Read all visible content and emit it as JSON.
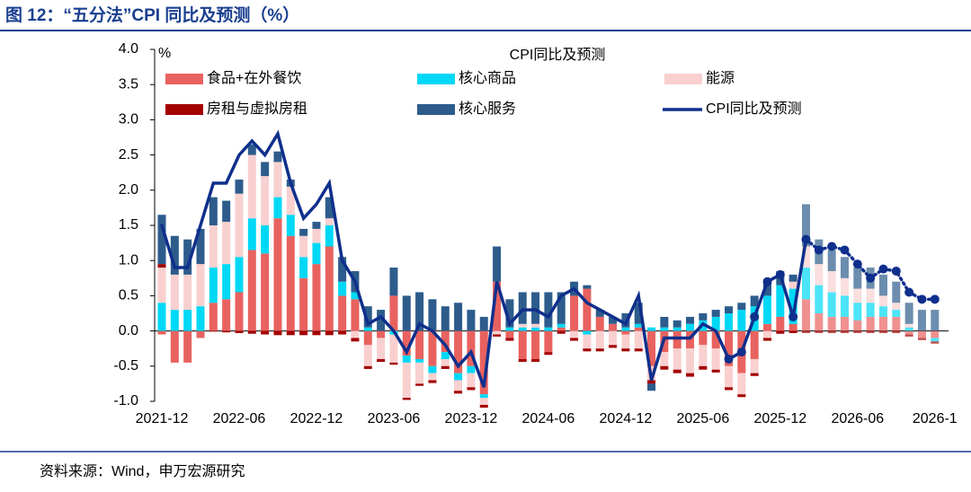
{
  "chart_data": {
    "type": "stacked-bar-line",
    "title": "图 12：“五分法”CPI 同比及预测（%）",
    "y_unit": "%",
    "legend_title": "CPI同比及预测",
    "source": "资料来源：Wind，申万宏源研究",
    "categories": [
      "2021-12",
      null,
      null,
      null,
      null,
      null,
      "2022-06",
      null,
      null,
      null,
      null,
      null,
      "2022-12",
      null,
      null,
      null,
      null,
      null,
      "2023-06",
      null,
      null,
      null,
      null,
      null,
      "2023-12",
      null,
      null,
      null,
      null,
      null,
      "2024-06",
      null,
      null,
      null,
      null,
      null,
      "2024-12",
      null,
      null,
      null,
      null,
      null,
      "2025-06",
      null,
      null,
      null,
      null,
      null,
      "2025-12",
      null,
      null,
      null,
      null,
      null,
      "2026-06",
      null,
      null,
      null,
      null,
      null,
      "2026-1"
    ],
    "ylim": [
      -1,
      4
    ],
    "yticks": [
      {
        "value": -1,
        "label": "-1.0"
      },
      {
        "value": -0.5,
        "label": "-0.5"
      },
      {
        "value": 0,
        "label": "0.0"
      },
      {
        "value": 0.5,
        "label": "0.5"
      },
      {
        "value": 1,
        "label": "1.0"
      },
      {
        "value": 1.5,
        "label": "1.5"
      },
      {
        "value": 2,
        "label": "2.0"
      },
      {
        "value": 2.5,
        "label": "2.5"
      },
      {
        "value": 3,
        "label": "3.0"
      },
      {
        "value": 3.5,
        "label": "3.5"
      },
      {
        "value": 4,
        "label": "4.0"
      }
    ],
    "series": [
      {
        "name": "食品+在外餐饮",
        "color": "#e8625f",
        "values": [
          -0.05,
          -0.45,
          -0.45,
          -0.1,
          0.4,
          0.45,
          0.55,
          1.15,
          1.1,
          1.6,
          1.35,
          0.75,
          0.95,
          1.2,
          0.5,
          0.45,
          -0.2,
          -0.1,
          0.5,
          -0.35,
          -0.4,
          -0.5,
          -0.3,
          -0.6,
          -0.5,
          -0.9,
          0.7,
          -0.1,
          -0.4,
          -0.4,
          -0.3,
          0.05,
          0.5,
          0.6,
          0.2,
          0.1,
          -0.05,
          0.05,
          -0.5,
          -0.3,
          -0.25,
          -0.25,
          -0.2,
          -0.25,
          -0.5,
          -0.6,
          -0.4,
          0.1,
          0.2,
          0.1,
          0.45,
          0.25,
          0.2,
          0.2,
          0.15,
          0.2,
          0.2,
          0.2,
          -0.05,
          -0.1,
          -0.1
        ]
      },
      {
        "name": "核心商品",
        "color": "#00d8f5",
        "values": [
          0.4,
          0.3,
          0.3,
          0.35,
          0.5,
          0.5,
          0.5,
          0.45,
          0.4,
          0.3,
          0.3,
          0.3,
          0.3,
          0.3,
          0.2,
          0.1,
          0.05,
          0,
          -0.05,
          -0.1,
          -0.05,
          -0.1,
          -0.1,
          -0.1,
          -0.1,
          -0.05,
          0,
          0.05,
          0.05,
          0.05,
          0.05,
          0.05,
          0,
          -0.05,
          0,
          0,
          0.05,
          0.05,
          0.05,
          0.05,
          0.05,
          0.1,
          0.15,
          0.2,
          0.25,
          0.3,
          0.35,
          0.4,
          0.45,
          0.5,
          0.45,
          0.4,
          0.35,
          0.3,
          0.25,
          0.2,
          0.15,
          0.1,
          0.05,
          0,
          -0.05
        ]
      },
      {
        "name": "能源",
        "color": "#f9d0d0",
        "values": [
          0.5,
          0.5,
          0.5,
          0.6,
          0.6,
          0.6,
          0.9,
          0.9,
          0.7,
          0.5,
          0.4,
          0.3,
          0.2,
          0.1,
          0,
          -0.1,
          -0.3,
          -0.3,
          -0.4,
          -0.5,
          -0.3,
          -0.1,
          -0.1,
          -0.15,
          -0.2,
          -0.1,
          -0.05,
          0,
          0.05,
          0.05,
          0,
          0,
          -0.1,
          -0.2,
          -0.25,
          -0.2,
          -0.2,
          -0.25,
          -0.2,
          -0.2,
          -0.3,
          -0.35,
          -0.3,
          -0.3,
          -0.3,
          -0.3,
          -0.2,
          -0.1,
          0,
          0.1,
          0.3,
          0.3,
          0.3,
          0.25,
          0.2,
          0.2,
          0.15,
          0.1,
          0.05,
          0,
          0
        ]
      },
      {
        "name": "房租与虚拟房租",
        "color": "#a30000",
        "values": [
          0.05,
          0,
          0,
          0,
          -0.01,
          -0.02,
          -0.03,
          -0.04,
          -0.05,
          -0.06,
          -0.06,
          -0.06,
          -0.06,
          -0.06,
          -0.05,
          -0.05,
          -0.04,
          -0.04,
          -0.03,
          -0.03,
          -0.03,
          -0.04,
          -0.04,
          -0.04,
          -0.04,
          -0.04,
          -0.03,
          -0.04,
          -0.04,
          -0.04,
          -0.04,
          -0.04,
          -0.04,
          -0.04,
          -0.04,
          -0.04,
          -0.04,
          -0.04,
          -0.05,
          -0.05,
          -0.05,
          -0.05,
          -0.05,
          -0.04,
          -0.04,
          -0.04,
          -0.04,
          -0.04,
          -0.04,
          -0.03,
          -0.03,
          -0.03,
          -0.03,
          -0.03,
          -0.03,
          -0.03,
          -0.03,
          -0.03,
          -0.03,
          -0.03,
          -0.03
        ]
      },
      {
        "name": "核心服务",
        "color": "#2d5c8c",
        "values": [
          0.7,
          0.55,
          0.5,
          0.5,
          0.4,
          0.3,
          0.2,
          0.15,
          0.2,
          0.15,
          0.1,
          0.1,
          0.1,
          0.3,
          0.35,
          0.3,
          0.3,
          0.3,
          0.4,
          0.5,
          0.55,
          0.45,
          0.35,
          0.4,
          0.3,
          0.2,
          0.5,
          0.4,
          0.45,
          0.45,
          0.5,
          0.45,
          0.2,
          0.05,
          0.1,
          0.1,
          0.2,
          0.3,
          -0.1,
          0.15,
          0.1,
          0.1,
          0.1,
          0.1,
          0.1,
          0.1,
          0.15,
          0.2,
          0.2,
          0.1,
          0.6,
          0.35,
          0.3,
          0.3,
          0.3,
          0.3,
          0.3,
          0.3,
          0.3,
          0.3,
          0.3
        ]
      },
      {
        "name": "CPI同比及预测",
        "color": "#0f2f8c",
        "kind": "line",
        "values": [
          1.5,
          0.9,
          0.9,
          1.5,
          2.1,
          2.1,
          2.5,
          2.7,
          2.5,
          2.8,
          2.1,
          1.6,
          1.8,
          2.1,
          1.0,
          0.7,
          0.1,
          0.2,
          0,
          -0.3,
          0.1,
          0,
          -0.2,
          -0.5,
          -0.3,
          -0.8,
          0.7,
          0.1,
          0.3,
          0.3,
          0.2,
          0.5,
          0.6,
          0.4,
          0.3,
          0.2,
          0.1,
          0.5,
          -0.7,
          -0.1,
          -0.1,
          -0.1,
          0.1,
          0,
          -0.4,
          -0.3,
          0.2,
          0.7,
          0.8,
          0.2,
          1.3,
          1.15,
          1.2,
          1.15,
          0.95,
          0.75,
          0.88,
          0.85,
          0.55,
          0.45,
          0.45
        ]
      }
    ]
  }
}
